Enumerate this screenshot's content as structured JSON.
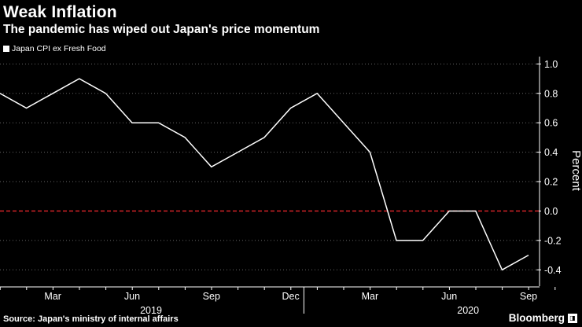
{
  "chart_data": {
    "type": "line",
    "title": "Weak Inflation",
    "subtitle": "The pandemic has wiped out Japan's price momentum",
    "ylabel": "Percent",
    "ylim": [
      -0.5,
      1.05
    ],
    "yticks": [
      1.0,
      0.8,
      0.6,
      0.4,
      0.2,
      0.0,
      -0.2,
      -0.4
    ],
    "ytick_labels": [
      "1.0",
      "0.8",
      "0.6",
      "0.4",
      "0.2",
      "0.0",
      "-0.2",
      "-0.4"
    ],
    "x": [
      "2019-01",
      "2019-02",
      "2019-03",
      "2019-04",
      "2019-05",
      "2019-06",
      "2019-07",
      "2019-08",
      "2019-09",
      "2019-10",
      "2019-11",
      "2019-12",
      "2020-01",
      "2020-02",
      "2020-03",
      "2020-04",
      "2020-05",
      "2020-06",
      "2020-07",
      "2020-08",
      "2020-09"
    ],
    "series": [
      {
        "name": "Japan CPI ex Fresh Food",
        "color": "#ffffff",
        "values": [
          0.8,
          0.7,
          0.8,
          0.9,
          0.8,
          0.6,
          0.6,
          0.5,
          0.3,
          0.4,
          0.5,
          0.7,
          0.8,
          0.6,
          0.4,
          -0.2,
          -0.2,
          0.0,
          0.0,
          -0.4,
          -0.3
        ]
      }
    ],
    "xticks": [
      {
        "at": "2019-03",
        "label": "Mar"
      },
      {
        "at": "2019-06",
        "label": "Jun"
      },
      {
        "at": "2019-09",
        "label": "Sep"
      },
      {
        "at": "2019-12",
        "label": "Dec"
      },
      {
        "at": "2020-03",
        "label": "Mar"
      },
      {
        "at": "2020-06",
        "label": "Jun"
      },
      {
        "at": "2020-09",
        "label": "Sep"
      }
    ],
    "year_labels": [
      {
        "at": "2019-06",
        "label": "2019"
      },
      {
        "at": "2020-06",
        "label": "2020"
      }
    ],
    "reference_line": {
      "y": 0.0,
      "color": "#e3262b",
      "style": "dashed"
    },
    "grid": "horizontal-dotted",
    "legend_position": "top-left",
    "axis_side": "right"
  },
  "footer": {
    "source": "Source: Japan's ministry of internal affairs",
    "brand": "Bloomberg"
  }
}
